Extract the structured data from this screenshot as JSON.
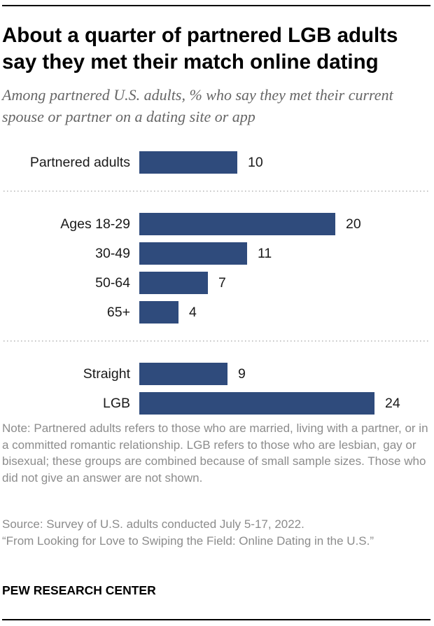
{
  "title": "About a quarter of partnered LGB adults say they met their match online dating",
  "subtitle": "Among partnered U.S. adults, % who say they met their current spouse or partner on a dating site or app",
  "chart_data": {
    "type": "bar",
    "orientation": "horizontal",
    "groups": [
      {
        "categories": [
          "Partnered adults"
        ],
        "values": [
          10
        ]
      },
      {
        "categories": [
          "Ages 18-29",
          "30-49",
          "50-64",
          "65+"
        ],
        "values": [
          20,
          11,
          7,
          4
        ]
      },
      {
        "categories": [
          "Straight",
          "LGB"
        ],
        "values": [
          9,
          24
        ]
      }
    ],
    "xlim": [
      0,
      24
    ],
    "bar_color": "#2f4b7c",
    "divider_color": "#b3b3b3",
    "grid": false,
    "axes_visible": false,
    "data_labels": true
  },
  "note": "Note: Partnered adults refers to those who are married, living with a partner, or in a committed romantic relationship. LGB refers to those who are lesbian, gay or bisexual; these groups are combined because of small sample sizes. Those who did not give an answer are not shown.",
  "source": "Source: Survey of U.S. adults conducted July 5-17, 2022.",
  "citation": "“From Looking for Love to Swiping the Field: Online Dating in the U.S.”",
  "brand": "PEW RESEARCH CENTER"
}
